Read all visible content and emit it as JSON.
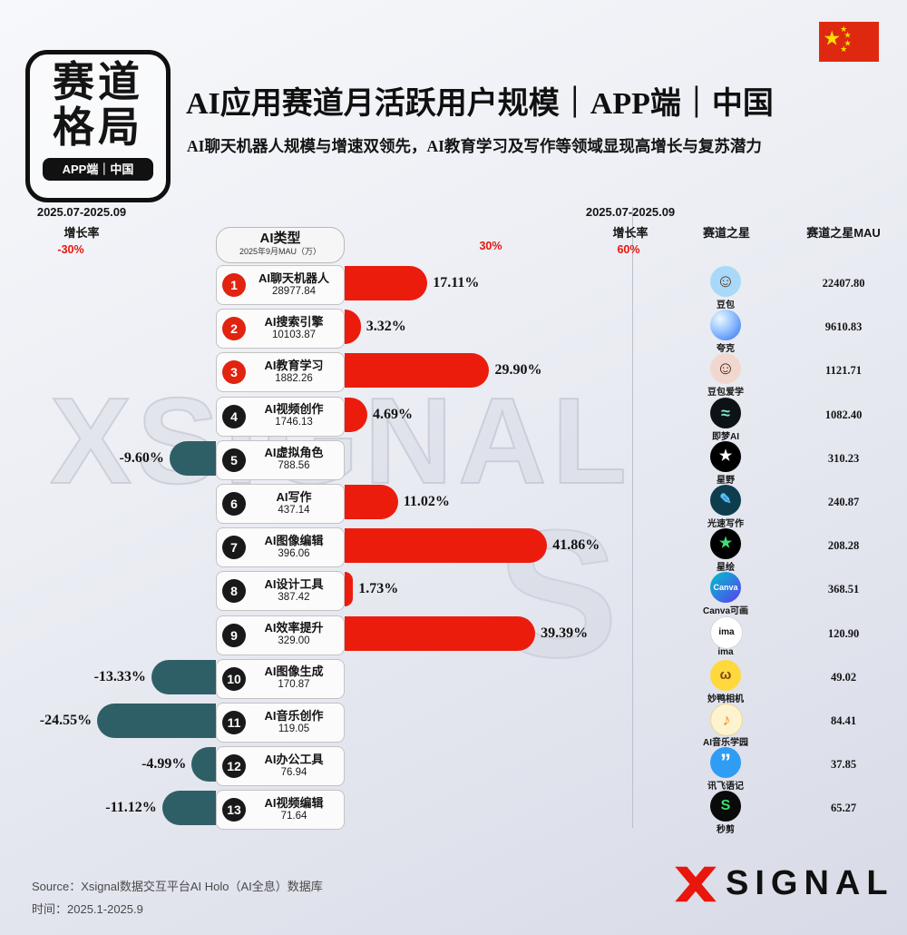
{
  "badge": {
    "line1": "赛道",
    "line2": "格局",
    "pill": "APP端｜中国"
  },
  "header": {
    "title": "AI应用赛道月活跃用户规模｜APP端｜中国",
    "subtitle": "AI聊天机器人规模与增速双领先，AI教育学习及写作等领域显现高增长与复苏潜力"
  },
  "axis": {
    "left_period": "2025.07-2025.09",
    "left_label": "增长率",
    "left_tick": "-30%",
    "mid_tick": "30%",
    "right_period": "2025.07-2025.09",
    "right_label": "增长率",
    "right_tick": "60%",
    "star_header": "赛道之星",
    "star_mau_header": "赛道之星MAU"
  },
  "center": {
    "title": "AI类型",
    "subtitle": "2025年9月MAU（万）"
  },
  "watermark": {
    "text": "XSIGNAL",
    "partial": "S"
  },
  "colors": {
    "positive_bar": "#ec1c0d",
    "negative_bar": "#2f5f66",
    "tick": "#e8160c",
    "rank_top3": "#e0240f",
    "rank_other": "#191919",
    "logo_red": "#e8160c"
  },
  "rows": [
    {
      "rank": "1",
      "name": "AI聊天机器人",
      "mau": "28977.84",
      "growth": 17.11,
      "growth_label": "17.11%",
      "star": "豆包",
      "star_mau": "22407.80",
      "icon": {
        "name": "doubao-avatar-icon",
        "bg": "#a9d9f8",
        "glyph": "☺",
        "color": "#5a3d2e",
        "size": "20px"
      }
    },
    {
      "rank": "2",
      "name": "AI搜索引擎",
      "mau": "10103.87",
      "growth": 3.32,
      "growth_label": "3.32%",
      "star": "夸克",
      "star_mau": "9610.83",
      "icon": {
        "name": "quark-icon",
        "bg": "radial-gradient(circle at 32% 30%, #eef8ff 0%, #9cc8ff 40%, #2e6ef2 100%)",
        "glyph": "",
        "color": "#ffffff",
        "size": "14px"
      }
    },
    {
      "rank": "3",
      "name": "AI教育学习",
      "mau": "1882.26",
      "growth": 29.9,
      "growth_label": "29.90%",
      "star": "豆包爱学",
      "star_mau": "1121.71",
      "icon": {
        "name": "doubao-aixue-avatar-icon",
        "bg": "#f2d7ce",
        "glyph": "☺",
        "color": "#47291d",
        "size": "20px"
      }
    },
    {
      "rank": "4",
      "name": "AI视频创作",
      "mau": "1746.13",
      "growth": 4.69,
      "growth_label": "4.69%",
      "star": "即梦AI",
      "star_mau": "1082.40",
      "icon": {
        "name": "jimeng-ai-icon",
        "bg": "#0d1216",
        "glyph": "≈",
        "color": "#7fe9d2",
        "size": "18px"
      }
    },
    {
      "rank": "5",
      "name": "AI虚拟角色",
      "mau": "788.56",
      "growth": -9.6,
      "growth_label": "-9.60%",
      "star": "星野",
      "star_mau": "310.23",
      "icon": {
        "name": "xingye-icon",
        "bg": "#000000",
        "glyph": "★",
        "color": "#ffffff",
        "size": "16px"
      }
    },
    {
      "rank": "6",
      "name": "AI写作",
      "mau": "437.14",
      "growth": 11.02,
      "growth_label": "11.02%",
      "star": "光速写作",
      "star_mau": "240.87",
      "icon": {
        "name": "guangsu-xiezuo-pen-icon",
        "bg": "#0e3e4e",
        "glyph": "✎",
        "color": "#59c2ff",
        "size": "16px"
      }
    },
    {
      "rank": "7",
      "name": "AI图像编辑",
      "mau": "396.06",
      "growth": 41.86,
      "growth_label": "41.86%",
      "star": "星绘",
      "star_mau": "208.28",
      "icon": {
        "name": "xinghui-star-icon",
        "bg": "#000000",
        "glyph": "★",
        "color": "#3ddf74",
        "size": "16px"
      }
    },
    {
      "rank": "8",
      "name": "AI设计工具",
      "mau": "387.42",
      "growth": 1.73,
      "growth_label": "1.73%",
      "star": "Canva可画",
      "star_mau": "368.51",
      "icon": {
        "name": "canva-kehua-icon",
        "bg": "linear-gradient(135deg,#00c4cc 0%,#5a3bee 100%)",
        "glyph": "Canva",
        "color": "#ffffff",
        "size": "9px"
      }
    },
    {
      "rank": "9",
      "name": "AI效率提升",
      "mau": "329.00",
      "growth": 39.39,
      "growth_label": "39.39%",
      "star": "ima",
      "star_mau": "120.90",
      "icon": {
        "name": "ima-panda-icon",
        "bg": "#ffffff",
        "border": "#d8d8d8",
        "glyph": "ima",
        "color": "#111111",
        "size": "10px"
      }
    },
    {
      "rank": "10",
      "name": "AI图像生成",
      "mau": "170.87",
      "growth": -13.33,
      "growth_label": "-13.33%",
      "star": "妙鸭相机",
      "star_mau": "49.02",
      "icon": {
        "name": "miaoya-camera-duck-icon",
        "bg": "#ffd83d",
        "glyph": "ω",
        "color": "#7a4a12",
        "size": "15px"
      }
    },
    {
      "rank": "11",
      "name": "AI音乐创作",
      "mau": "119.05",
      "growth": -24.55,
      "growth_label": "-24.55%",
      "star": "AI音乐学园",
      "star_mau": "84.41",
      "icon": {
        "name": "ai-music-school-note-icon",
        "bg": "#fdf3cf",
        "border": "#e8d79a",
        "glyph": "♪",
        "color": "#f08c1e",
        "size": "18px"
      }
    },
    {
      "rank": "12",
      "name": "AI办公工具",
      "mau": "76.94",
      "growth": -4.99,
      "growth_label": "-4.99%",
      "star": "讯飞语记",
      "star_mau": "37.85",
      "icon": {
        "name": "xunfei-yuji-quote-icon",
        "bg": "#2f9df4",
        "glyph": "”",
        "color": "#ffffff",
        "size": "24px"
      }
    },
    {
      "rank": "13",
      "name": "AI视频编辑",
      "mau": "71.64",
      "growth": -11.12,
      "growth_label": "-11.12%",
      "star": "秒剪",
      "star_mau": "65.27",
      "icon": {
        "name": "miaojian-icon",
        "bg": "#0a0a0a",
        "glyph": "S",
        "color": "#3ae06a",
        "size": "16px"
      }
    }
  ],
  "chart_data": {
    "type": "bar",
    "bar_orientation": "horizontal",
    "title": "AI应用赛道月活跃用户规模｜APP端｜中国",
    "subtitle": "AI聊天机器人规模与增速双领先，AI教育学习及写作等领域显现高增长与复苏潜力",
    "xlabel": "2025.07-2025.09 增长率 (%)",
    "axis_range_growth_pct": [
      -30,
      60
    ],
    "axis_ticks_pct": [
      "-30%",
      "30%",
      "60%"
    ],
    "categories": [
      "AI聊天机器人",
      "AI搜索引擎",
      "AI教育学习",
      "AI视频创作",
      "AI虚拟角色",
      "AI写作",
      "AI图像编辑",
      "AI设计工具",
      "AI效率提升",
      "AI图像生成",
      "AI音乐创作",
      "AI办公工具",
      "AI视频编辑"
    ],
    "series": [
      {
        "name": "2025年9月MAU（万）",
        "values": [
          28977.84,
          10103.87,
          1882.26,
          1746.13,
          788.56,
          437.14,
          396.06,
          387.42,
          329.0,
          170.87,
          119.05,
          76.94,
          71.64
        ]
      },
      {
        "name": "2025.07-2025.09增长率(%)",
        "values": [
          17.11,
          3.32,
          29.9,
          4.69,
          -9.6,
          11.02,
          41.86,
          1.73,
          39.39,
          -13.33,
          -24.55,
          -4.99,
          -11.12
        ]
      },
      {
        "name": "赛道之星",
        "values_text": [
          "豆包",
          "夸克",
          "豆包爱学",
          "即梦AI",
          "星野",
          "光速写作",
          "星绘",
          "Canva可画",
          "ima",
          "妙鸭相机",
          "AI音乐学园",
          "讯飞语记",
          "秒剪"
        ]
      },
      {
        "name": "赛道之星MAU",
        "values": [
          22407.8,
          9610.83,
          1121.71,
          1082.4,
          310.23,
          240.87,
          208.28,
          368.51,
          120.9,
          49.02,
          84.41,
          37.85,
          65.27
        ]
      }
    ],
    "legend_position": "none",
    "grid": false
  },
  "footer": {
    "source": "Source：Xsignal数据交互平台AI Holo（AI全息）数据库",
    "time": "时间：2025.1-2025.9",
    "logo_text": "SIGNAL"
  }
}
